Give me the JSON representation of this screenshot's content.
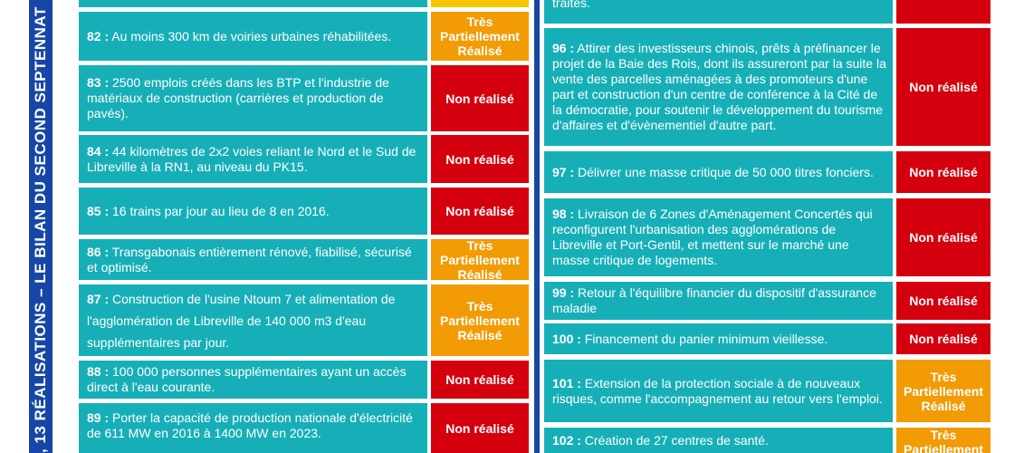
{
  "sidebar": {
    "vertical_title": ", 13 RÉALISATIONS – LE BILAN DU SECOND SEPTENNAT"
  },
  "colors": {
    "desc_bg": "#17afb7",
    "non_realise": "#d4000e",
    "partiel": "#f29b05",
    "band": "#1747a6"
  },
  "left_column": [
    {
      "num": "82 :",
      "text": " Au moins 300 km de voiries urbaines réhabilitées.",
      "status": "Très Partiellement Réalisé"
    },
    {
      "num": "83 :",
      "text": " 2500 emplois créés dans les BTP et l'industrie de matériaux de construction (carrières et production de pavés).",
      "status": "Non réalisé"
    },
    {
      "num": "84 :",
      "text": " 44 kilomètres de 2x2 voies reliant le Nord et le Sud de Libreville à la RN1, au niveau du PK15.",
      "status": "Non réalisé"
    },
    {
      "num": "85 :",
      "text": " 16 trains par jour au lieu de 8 en 2016.",
      "status": "Non réalisé"
    },
    {
      "num": "86 :",
      "text": " Transgabonais entièrement rénové, fiabilisé, sécurisé et optimisé.",
      "status": "Très Partiellement Réalisé"
    },
    {
      "num": "87 :",
      "text": " Construction de l'usine Ntoum 7 et alimentation de l'agglomération de Libreville de 140 000 m3 d'eau supplémentaires par jour.",
      "status": "Très Partiellement Réalisé"
    },
    {
      "num": "88 :",
      "text": " 100 000 personnes supplémentaires ayant un accès direct à l'eau courante.",
      "status": "Non réalisé"
    },
    {
      "num": "89 :",
      "text": " Porter la capacité de production nationale d'électricité de 611 MW en 2016 à 1400 MW en 2023.",
      "status": "Non réalisé"
    }
  ],
  "right_column": [
    {
      "num": "",
      "text": "traités.",
      "status": ""
    },
    {
      "num": "96 :",
      "text": " Attirer des investisseurs chinois, prêts à préfinancer le projet de la Baie des Rois, dont ils assureront par la suite la vente des parcelles aménagées à des promoteurs d'une part et construction d'un centre de conférence à la Cité de la démocratie, pour soutenir le développement du tourisme d'affaires et d'évènementiel d'autre part.",
      "status": "Non réalisé"
    },
    {
      "num": "97 :",
      "text": " Délivrer une masse critique de 50 000 titres fonciers.",
      "status": "Non réalisé"
    },
    {
      "num": "98 :",
      "text": " Livraison de 6 Zones d'Aménagement Concertés qui reconfigurent l'urbanisation des agglomérations de Libreville et Port-Gentil, et mettent sur le marché une masse critique de logements.",
      "status": "Non réalisé"
    },
    {
      "num": "99 :",
      "text": " Retour à l'équilibre financier du dispositif d'assurance maladie",
      "status": "Non réalisé"
    },
    {
      "num": "100 :",
      "text": " Financement du panier minimum vieillesse.",
      "status": "Non réalisé"
    },
    {
      "num": "101 :",
      "text": " Extension de la protection sociale à de nouveaux risques, comme l'accompagnement au retour vers l'emploi.",
      "status": "Très Partiellement Réalisé"
    },
    {
      "num": "102 :",
      "text": " Création de 27 centres de santé.",
      "status": "Très Partiellement Réalisé"
    }
  ]
}
